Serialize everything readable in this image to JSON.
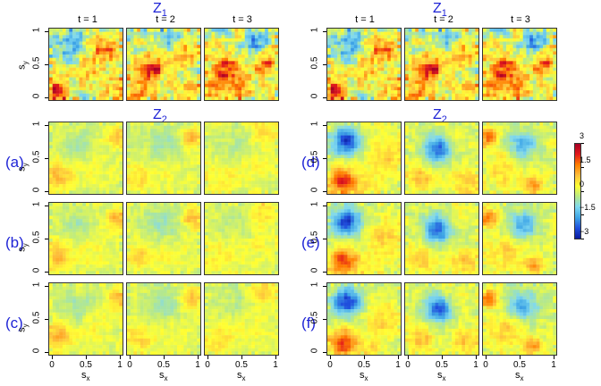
{
  "group_titles": {
    "left_z1": {
      "main": "Z",
      "sub": "1"
    },
    "left_z2": {
      "main": "Z",
      "sub": "2"
    },
    "right_z1": {
      "main": "Z",
      "sub": "1"
    },
    "right_z2": {
      "main": "Z",
      "sub": "2"
    }
  },
  "column_titles": [
    "t = 1",
    "t = 2",
    "t = 3"
  ],
  "row_labels": [
    "(a)",
    "(b)",
    "(c)",
    "(d)",
    "(e)",
    "(f)"
  ],
  "axes": {
    "x_label": {
      "main": "s",
      "sub": "x"
    },
    "y_label": {
      "main": "s",
      "sub": "y"
    },
    "x_ticks": [
      "0",
      "0.5",
      "1"
    ],
    "y_ticks": [
      "0",
      "0.5",
      "1"
    ]
  },
  "colorbar": {
    "ticks": [
      "3",
      "1.5",
      "0",
      "−1.5",
      "−3"
    ],
    "range": [
      -3,
      3
    ],
    "colors": [
      "#a50026",
      "#e31a1c",
      "#ff7f00",
      "#fdbf3c",
      "#ffff33",
      "#b8e986",
      "#7fd8f0",
      "#3fa6e6",
      "#1f4fdd",
      "#0a1a9e"
    ]
  },
  "panels": {
    "layout": "2 groups x (Z1 row + Z2 rows a-c / d-f) x 3 time columns",
    "palette_note": ""
  }
}
